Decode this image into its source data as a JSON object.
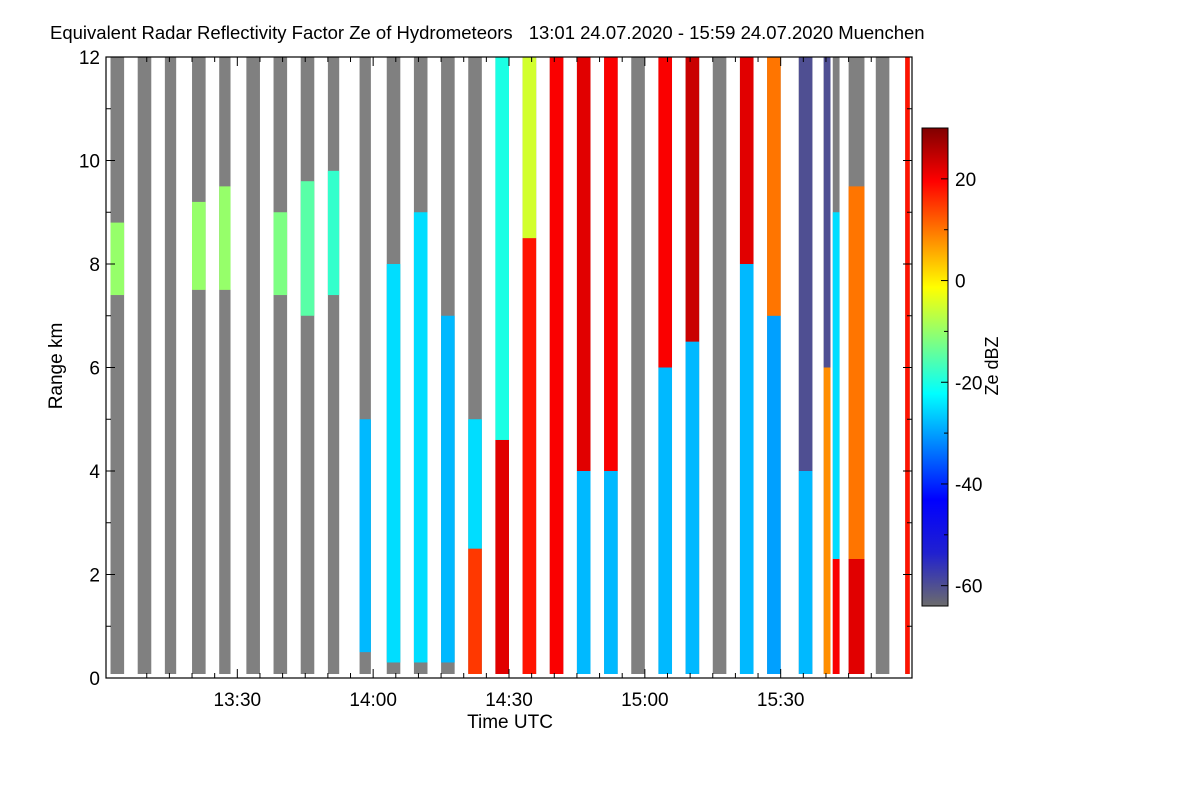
{
  "chart_data": {
    "type": "heatmap",
    "title": "Equivalent Radar Reflectivity Factor Ze of Hydrometeors",
    "time_range": "13:01 24.07.2020 - 15:59 24.07.2020",
    "location": "Muenchen",
    "xlabel": "Time UTC",
    "ylabel": "Range km",
    "xlim_minutes": [
      781,
      959
    ],
    "ylim": [
      0,
      12
    ],
    "x_ticks": [
      {
        "label": "13:30",
        "minutes": 810
      },
      {
        "label": "14:00",
        "minutes": 840
      },
      {
        "label": "14:30",
        "minutes": 870
      },
      {
        "label": "15:00",
        "minutes": 900
      },
      {
        "label": "15:30",
        "minutes": 930
      }
    ],
    "y_ticks": [
      "0",
      "2",
      "4",
      "6",
      "8",
      "10",
      "12"
    ],
    "colorbar": {
      "label": "Ze dBZ",
      "range": [
        -64,
        30
      ],
      "ticks": [
        "20",
        "0",
        "-20",
        "-40",
        "-60"
      ],
      "colors": [
        "#6c6c6c",
        "#2020d0",
        "#0000ff",
        "#0080ff",
        "#00ffff",
        "#80ff80",
        "#ffff00",
        "#ff8000",
        "#ff0000",
        "#800000"
      ]
    },
    "no_signal_color": "#808080",
    "observations": [
      {
        "t0": 782.0,
        "t1": 785.0,
        "kind": "echo",
        "layers": [
          {
            "y0": 7.4,
            "y1": 8.8,
            "dbz": -10
          }
        ]
      },
      {
        "t0": 788.0,
        "t1": 791.0,
        "kind": "nosignal",
        "layers": []
      },
      {
        "t0": 794.0,
        "t1": 796.5,
        "kind": "nosignal",
        "layers": []
      },
      {
        "t0": 800.0,
        "t1": 803.0,
        "kind": "echo",
        "layers": [
          {
            "y0": 7.5,
            "y1": 9.2,
            "dbz": -10
          }
        ]
      },
      {
        "t0": 806.0,
        "t1": 808.5,
        "kind": "echo",
        "layers": [
          {
            "y0": 7.5,
            "y1": 9.5,
            "dbz": -10
          }
        ]
      },
      {
        "t0": 812.0,
        "t1": 815.0,
        "kind": "nosignal",
        "layers": []
      },
      {
        "t0": 818.0,
        "t1": 821.0,
        "kind": "echo",
        "layers": [
          {
            "y0": 7.4,
            "y1": 9.0,
            "dbz": -12
          }
        ]
      },
      {
        "t0": 824.0,
        "t1": 827.0,
        "kind": "echo",
        "layers": [
          {
            "y0": 7.0,
            "y1": 9.6,
            "dbz": -15
          }
        ]
      },
      {
        "t0": 830.0,
        "t1": 832.5,
        "kind": "echo",
        "layers": [
          {
            "y0": 7.4,
            "y1": 9.8,
            "dbz": -18
          }
        ]
      },
      {
        "t0": 837.0,
        "t1": 839.5,
        "kind": "echo",
        "layers": [
          {
            "y0": 0.5,
            "y1": 5.0,
            "dbz": -28
          }
        ]
      },
      {
        "t0": 843.0,
        "t1": 846.0,
        "kind": "echo",
        "layers": [
          {
            "y0": 0.3,
            "y1": 8.0,
            "dbz": -25
          }
        ]
      },
      {
        "t0": 849.0,
        "t1": 852.0,
        "kind": "echo",
        "layers": [
          {
            "y0": 0.3,
            "y1": 9.0,
            "dbz": -25
          }
        ]
      },
      {
        "t0": 855.0,
        "t1": 858.0,
        "kind": "echo",
        "layers": [
          {
            "y0": 0.3,
            "y1": 7.0,
            "dbz": -28
          }
        ]
      },
      {
        "t0": 861.0,
        "t1": 864.0,
        "kind": "echo",
        "layers": [
          {
            "y0": 0.0,
            "y1": 2.5,
            "dbz": 15
          },
          {
            "y0": 2.5,
            "y1": 5.0,
            "dbz": -25
          }
        ]
      },
      {
        "t0": 867.0,
        "t1": 870.0,
        "kind": "echo",
        "layers": [
          {
            "y0": 0.0,
            "y1": 4.6,
            "dbz": 22
          },
          {
            "y0": 4.6,
            "y1": 12.0,
            "dbz": -20
          }
        ]
      },
      {
        "t0": 873.0,
        "t1": 876.0,
        "kind": "echo",
        "layers": [
          {
            "y0": 0.0,
            "y1": 8.5,
            "dbz": 18
          },
          {
            "y0": 8.5,
            "y1": 12.0,
            "dbz": -5
          }
        ]
      },
      {
        "t0": 879.0,
        "t1": 882.0,
        "kind": "echo",
        "layers": [
          {
            "y0": 0.0,
            "y1": 12.0,
            "dbz": 20
          }
        ]
      },
      {
        "t0": 885.0,
        "t1": 888.0,
        "kind": "echo",
        "layers": [
          {
            "y0": 0.0,
            "y1": 4.0,
            "dbz": -28
          },
          {
            "y0": 4.0,
            "y1": 12.0,
            "dbz": 22
          }
        ]
      },
      {
        "t0": 891.0,
        "t1": 894.0,
        "kind": "echo",
        "layers": [
          {
            "y0": 0.0,
            "y1": 4.0,
            "dbz": -28
          },
          {
            "y0": 4.0,
            "y1": 12.0,
            "dbz": 20
          }
        ]
      },
      {
        "t0": 897.0,
        "t1": 900.0,
        "kind": "nosignal",
        "layers": []
      },
      {
        "t0": 903.0,
        "t1": 906.0,
        "kind": "echo",
        "layers": [
          {
            "y0": 0.0,
            "y1": 6.0,
            "dbz": -28
          },
          {
            "y0": 6.0,
            "y1": 12.0,
            "dbz": 20
          }
        ]
      },
      {
        "t0": 909.0,
        "t1": 912.0,
        "kind": "echo",
        "layers": [
          {
            "y0": 0.0,
            "y1": 6.5,
            "dbz": -28
          },
          {
            "y0": 6.5,
            "y1": 12.0,
            "dbz": 24
          }
        ]
      },
      {
        "t0": 915.0,
        "t1": 918.0,
        "kind": "nosignal",
        "layers": []
      },
      {
        "t0": 921.0,
        "t1": 924.0,
        "kind": "echo",
        "layers": [
          {
            "y0": 0.0,
            "y1": 8.0,
            "dbz": -28
          },
          {
            "y0": 8.0,
            "y1": 12.0,
            "dbz": 22
          }
        ]
      },
      {
        "t0": 927.0,
        "t1": 930.0,
        "kind": "echo",
        "layers": [
          {
            "y0": 0.0,
            "y1": 7.0,
            "dbz": -30
          },
          {
            "y0": 7.0,
            "y1": 12.0,
            "dbz": 10
          }
        ]
      },
      {
        "t0": 934.0,
        "t1": 937.0,
        "kind": "echo",
        "layers": [
          {
            "y0": 0.0,
            "y1": 4.0,
            "dbz": -28
          },
          {
            "y0": 4.0,
            "y1": 12.0,
            "dbz": -60
          }
        ]
      },
      {
        "t0": 939.5,
        "t1": 941.0,
        "kind": "echo",
        "layers": [
          {
            "y0": 0.0,
            "y1": 6.0,
            "dbz": 8
          },
          {
            "y0": 6.0,
            "y1": 12.0,
            "dbz": -60
          }
        ]
      },
      {
        "t0": 941.5,
        "t1": 943.0,
        "kind": "echo",
        "layers": [
          {
            "y0": 0.0,
            "y1": 2.3,
            "dbz": 20
          },
          {
            "y0": 2.3,
            "y1": 9.0,
            "dbz": -25
          }
        ]
      },
      {
        "t0": 945.0,
        "t1": 948.5,
        "kind": "echo",
        "layers": [
          {
            "y0": 0.0,
            "y1": 2.3,
            "dbz": 22
          },
          {
            "y0": 2.3,
            "y1": 9.5,
            "dbz": 10
          }
        ]
      },
      {
        "t0": 951.0,
        "t1": 954.0,
        "kind": "nosignal",
        "layers": []
      },
      {
        "t0": 957.5,
        "t1": 958.5,
        "kind": "echo",
        "layers": [
          {
            "y0": 0.0,
            "y1": 12.0,
            "dbz": 18
          }
        ]
      }
    ]
  }
}
